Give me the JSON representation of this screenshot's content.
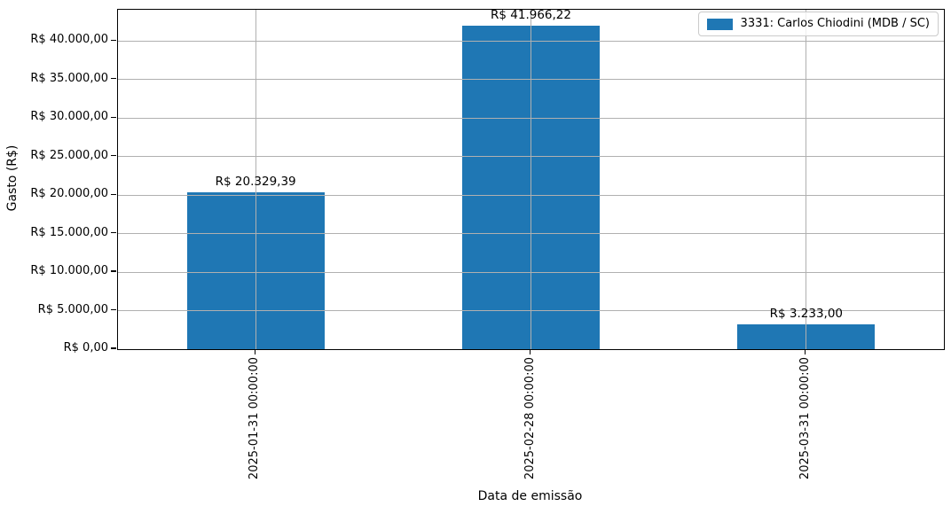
{
  "chart_data": {
    "type": "bar",
    "title": "",
    "xlabel": "Data de emissão",
    "ylabel": "Gasto (R$)",
    "categories": [
      "2025-01-31 00:00:00",
      "2025-02-28 00:00:00",
      "2025-03-31 00:00:00"
    ],
    "series": [
      {
        "name": "3331: Carlos Chiodini (MDB / SC)",
        "color": "#1f77b4",
        "values": [
          20329.39,
          41966.22,
          3233.0
        ],
        "value_labels": [
          "R$ 20.329,39",
          "R$ 41.966,22",
          "R$ 3.233,00"
        ]
      }
    ],
    "bar_width_fraction": 0.5,
    "ylim": [
      0,
      44064.53
    ],
    "ytick_step": 5000,
    "ytick_labels": [
      "R$ 0,00",
      "R$ 5.000,00",
      "R$ 10.000,00",
      "R$ 15.000,00",
      "R$ 20.000,00",
      "R$ 25.000,00",
      "R$ 30.000,00",
      "R$ 35.000,00",
      "R$ 40.000,00"
    ],
    "grid": true,
    "grid_color": "#b0b0b0",
    "legend_position": "upper right"
  }
}
